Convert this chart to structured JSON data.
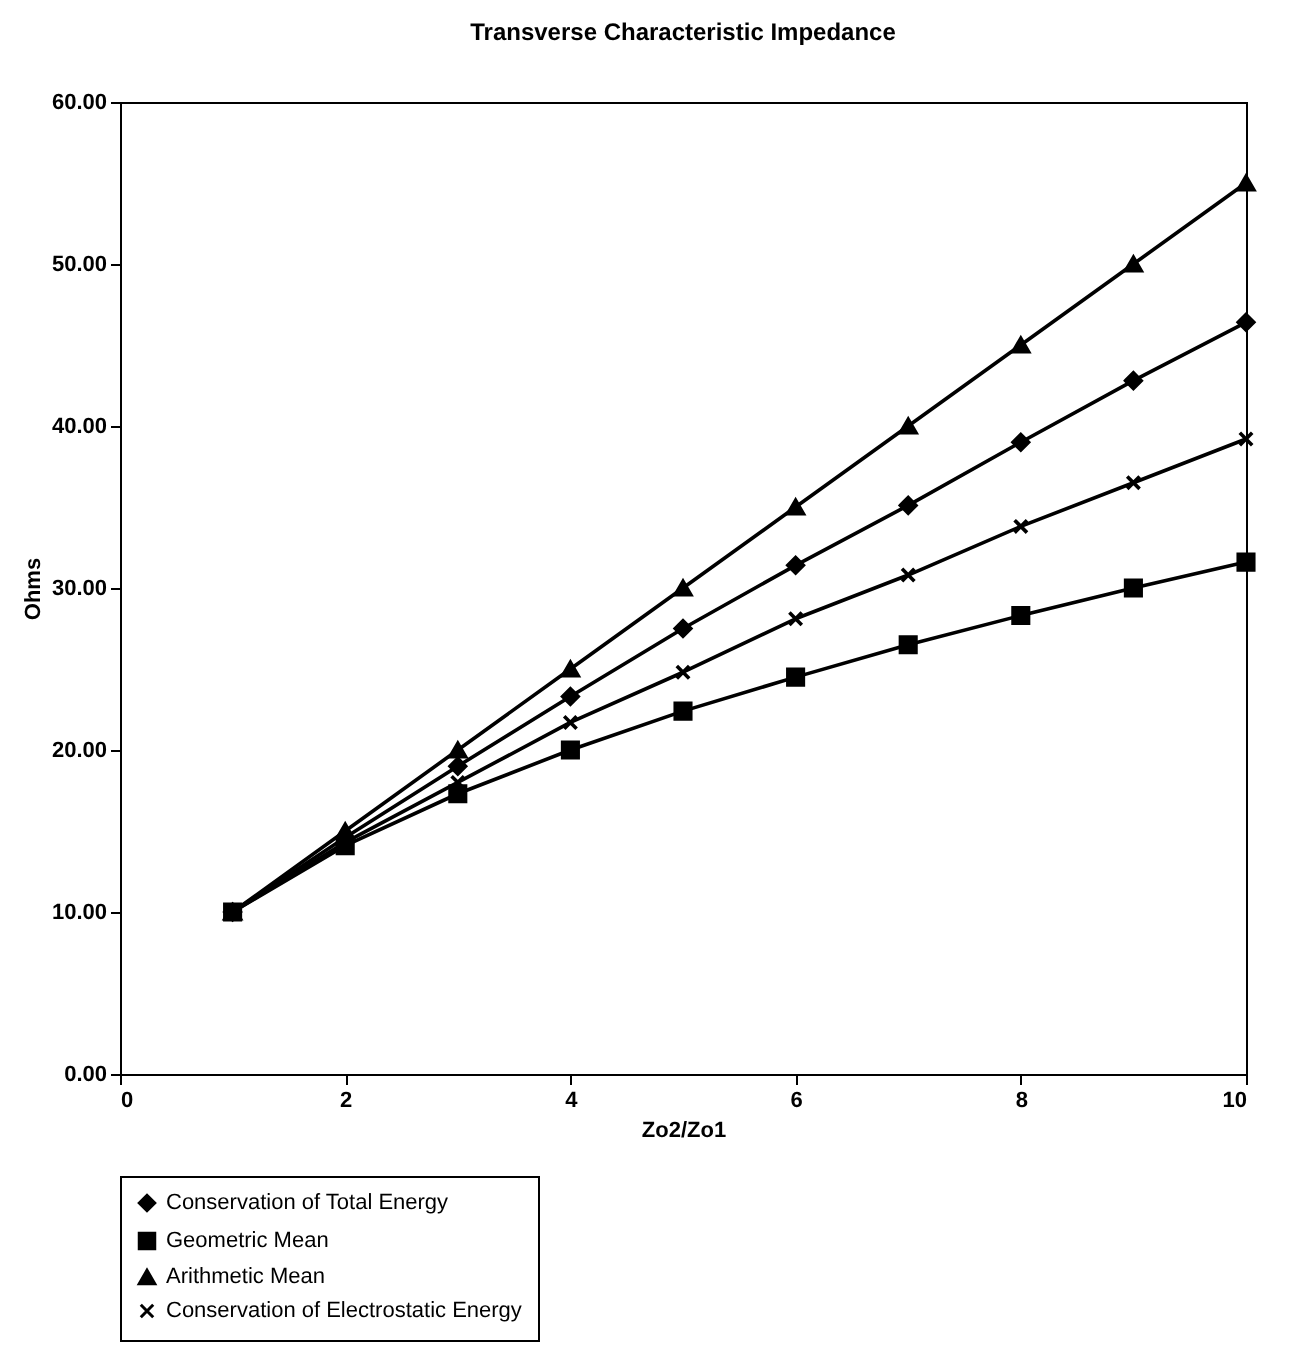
{
  "chart_data": {
    "type": "line",
    "title": "Transverse Characteristic Impedance",
    "xlabel": "Zo2/Zo1",
    "ylabel": "Ohms",
    "x": [
      1,
      2,
      3,
      4,
      5,
      6,
      7,
      8,
      9,
      10
    ],
    "series": [
      {
        "name": "Conservation of Total Energy",
        "color": "#000000",
        "marker": "diamond",
        "values": [
          10,
          14.6,
          19.0,
          23.3,
          27.5,
          31.4,
          35.1,
          39.0,
          42.8,
          46.4
        ]
      },
      {
        "name": "Geometric Mean",
        "color": "#000000",
        "marker": "square",
        "values": [
          10,
          14.1,
          17.3,
          20.0,
          22.4,
          24.5,
          26.5,
          28.3,
          30.0,
          31.6
        ]
      },
      {
        "name": "Arithmetic Mean",
        "color": "#000000",
        "marker": "triangle",
        "values": [
          10,
          15,
          20,
          25,
          30,
          35,
          40,
          45,
          50,
          55
        ]
      },
      {
        "name": "Conservation of Electrostatic Energy",
        "color": "#000000",
        "marker": "cross",
        "values": [
          10,
          14.3,
          18.0,
          21.7,
          24.8,
          28.1,
          30.8,
          33.8,
          36.5,
          39.2
        ]
      }
    ],
    "xlim": [
      0,
      10
    ],
    "xticks": [
      0,
      2,
      4,
      6,
      8,
      10
    ],
    "ylim": [
      0,
      60
    ],
    "yticks": [
      {
        "value": 0,
        "label": "0.00"
      },
      {
        "value": 10,
        "label": "10.00"
      },
      {
        "value": 20,
        "label": "20.00"
      },
      {
        "value": 30,
        "label": "30.00"
      },
      {
        "value": 40,
        "label": "40.00"
      },
      {
        "value": 50,
        "label": "50.00"
      },
      {
        "value": 60,
        "label": "60.00"
      }
    ],
    "grid": false,
    "legend": "bottom",
    "line_style": "solid"
  }
}
